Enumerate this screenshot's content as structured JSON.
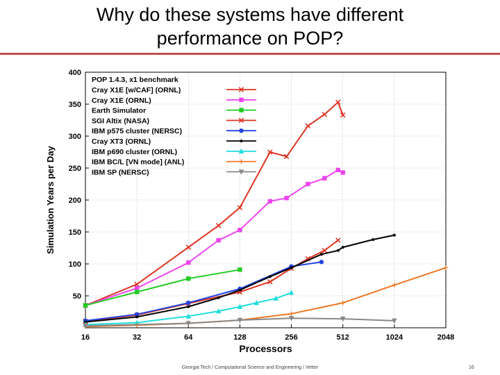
{
  "slide": {
    "title_line1": "Why do these systems have different",
    "title_line2": "performance on POP?",
    "footer": "Georgia Tech / Computational Science and Engineering / Vetter",
    "page_number": "16"
  },
  "chart_data": {
    "type": "line",
    "title": "POP 1.4.3, x1 benchmark",
    "xlabel": "Processors",
    "ylabel": "Simulation Years per Day",
    "xscale": "log2",
    "xticks": [
      16,
      32,
      64,
      128,
      256,
      512,
      1024,
      2048
    ],
    "xlim": [
      16,
      2048
    ],
    "yticks": [
      50,
      100,
      150,
      200,
      250,
      300,
      350,
      400
    ],
    "ylim": [
      0,
      400
    ],
    "grid": true,
    "legend_position": "top-left",
    "series": [
      {
        "name": "Cray X1E [w/CAF] (ORNL)",
        "color": "#dd3322",
        "marker": "x",
        "x": [
          16,
          32,
          64,
          96,
          128,
          192,
          240,
          320,
          400,
          480,
          512
        ],
        "y": [
          35,
          68,
          126,
          160,
          188,
          275,
          268,
          316,
          334,
          353,
          333
        ]
      },
      {
        "name": "Cray X1E (ORNL)",
        "color": "#ee44ee",
        "marker": "square",
        "x": [
          16,
          32,
          64,
          96,
          128,
          192,
          240,
          320,
          400,
          480,
          512
        ],
        "y": [
          35,
          62,
          102,
          137,
          153,
          198,
          203,
          225,
          234,
          247,
          243
        ]
      },
      {
        "name": "Earth Simulator",
        "color": "#22cc22",
        "marker": "square",
        "x": [
          16,
          32,
          64,
          128
        ],
        "y": [
          35,
          56,
          77,
          91
        ]
      },
      {
        "name": "SGI Altix (NASA)",
        "color": "#dd3322",
        "marker": "x",
        "x": [
          16,
          32,
          64,
          128,
          192,
          256,
          320,
          400,
          480
        ],
        "y": [
          10,
          20,
          38,
          56,
          72,
          93,
          108,
          121,
          137
        ]
      },
      {
        "name": "IBM p575 cluster (NERSC)",
        "color": "#2244dd",
        "marker": "circle",
        "x": [
          16,
          32,
          64,
          128,
          256,
          384
        ],
        "y": [
          11,
          21,
          39,
          61,
          96,
          103
        ]
      },
      {
        "name": "Cray XT3 (ORNL)",
        "color": "#000000",
        "marker": "dot",
        "x": [
          16,
          32,
          64,
          96,
          128,
          192,
          256,
          384,
          480,
          512,
          768,
          1024
        ],
        "y": [
          9,
          17,
          33,
          47,
          59,
          80,
          94,
          115,
          121,
          126,
          138,
          145
        ]
      },
      {
        "name": "IBM p690 cluster (ORNL)",
        "color": "#22dddd",
        "marker": "triangle",
        "x": [
          16,
          32,
          64,
          96,
          128,
          160,
          208,
          256
        ],
        "y": [
          5,
          8,
          18,
          26,
          33,
          39,
          46,
          55
        ]
      },
      {
        "name": "IBM BC/L [VN mode] (ANL)",
        "color": "#ee7722",
        "marker": "plus",
        "x": [
          16,
          32,
          64,
          128,
          256,
          512,
          1024,
          2048
        ],
        "y": [
          2,
          4,
          7,
          12,
          22,
          39,
          67,
          94
        ]
      },
      {
        "name": "IBM SP (NERSC)",
        "color": "#888888",
        "marker": "triangle-down",
        "x": [
          16,
          64,
          128,
          256,
          512,
          1024
        ],
        "y": [
          3,
          7,
          12,
          15,
          14,
          11
        ]
      }
    ]
  }
}
